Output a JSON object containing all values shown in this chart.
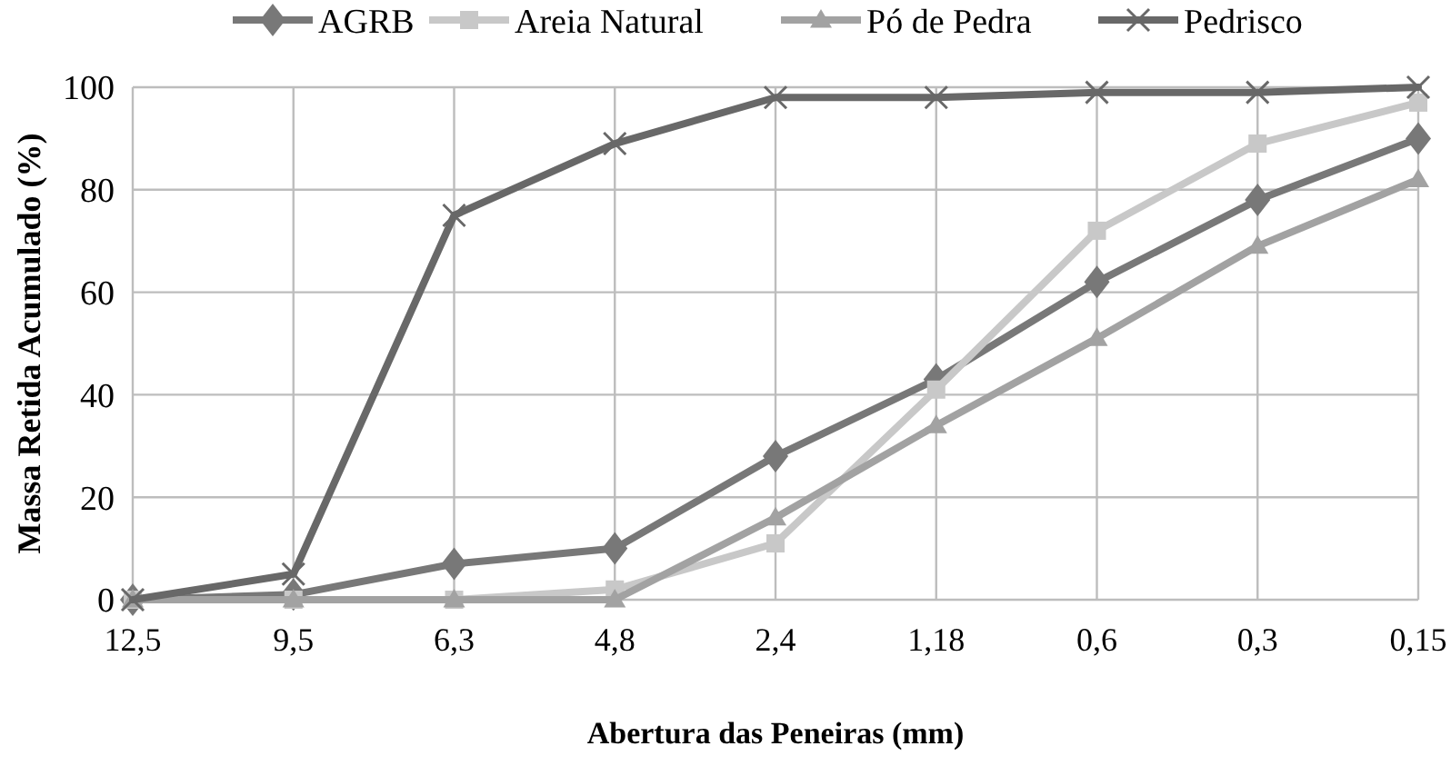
{
  "chart_data": {
    "type": "line",
    "xlabel": "Abertura das Peneiras (mm)",
    "ylabel": "Massa Retida Acumulado (%)",
    "categories": [
      "12,5",
      "9,5",
      "6,3",
      "4,8",
      "2,4",
      "1,18",
      "0,6",
      "0,3",
      "0,15"
    ],
    "series": [
      {
        "name": "AGRB",
        "color": "#787878",
        "marker": "diamond",
        "values": [
          0,
          1,
          7,
          10,
          28,
          43,
          62,
          78,
          90
        ]
      },
      {
        "name": "Areia Natural",
        "color": "#c8c8c8",
        "marker": "square",
        "values": [
          0,
          0,
          0,
          2,
          11,
          41,
          72,
          89,
          97
        ]
      },
      {
        "name": "Pó de Pedra",
        "color": "#a2a2a2",
        "marker": "triangle",
        "values": [
          0,
          0,
          0,
          0,
          16,
          34,
          51,
          69,
          82
        ]
      },
      {
        "name": "Pedrisco",
        "color": "#686868",
        "marker": "cross",
        "values": [
          0,
          5,
          75,
          89,
          98,
          98,
          99,
          99,
          100
        ]
      }
    ],
    "ylim": [
      0,
      100
    ],
    "yticks": [
      0,
      20,
      40,
      60,
      80,
      100
    ],
    "grid": true,
    "legend": "top",
    "line_style": "solid"
  }
}
